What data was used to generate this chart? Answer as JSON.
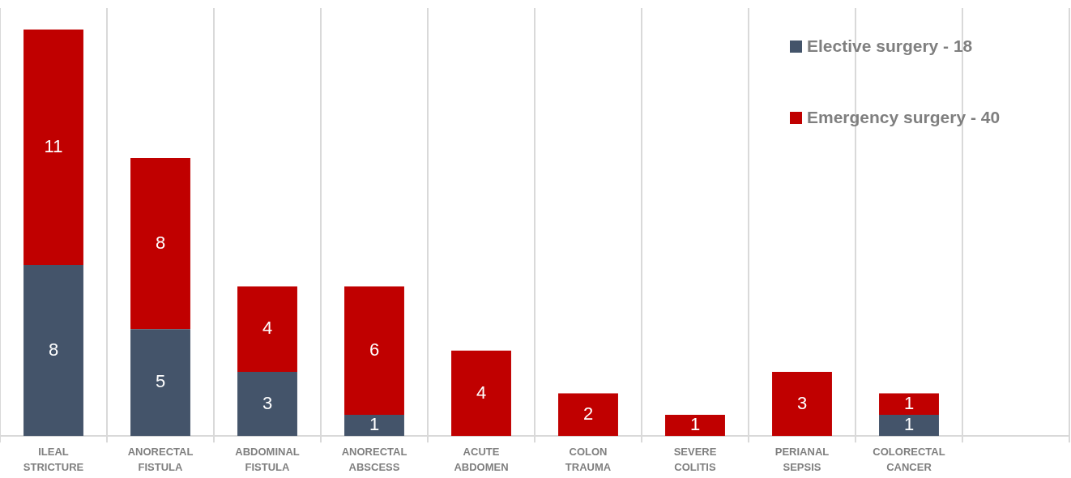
{
  "chart_data": {
    "type": "bar",
    "stacked": true,
    "grid": "x",
    "legend": "top right",
    "data_labels": true,
    "categories": [
      "ILEAL STRICTURE",
      "ANORECTAL FISTULA",
      "ABDOMINAL FISTULA",
      "ANORECTAL ABSCESS",
      "ACUTE ABDOMEN",
      "COLON TRAUMA",
      "SEVERE COLITIS",
      "PERIANAL SEPSIS",
      "COLORECTAL CANCER",
      null
    ],
    "series": [
      {
        "name": "Elective surgery - 18",
        "color": "#44546a",
        "values": [
          8,
          5,
          3,
          1,
          null,
          null,
          null,
          null,
          1,
          null
        ]
      },
      {
        "name": "Emergency surgery - 40",
        "color": "#c00000",
        "values": [
          11,
          8,
          4,
          6,
          4,
          2,
          1,
          3,
          1,
          null
        ]
      }
    ]
  }
}
